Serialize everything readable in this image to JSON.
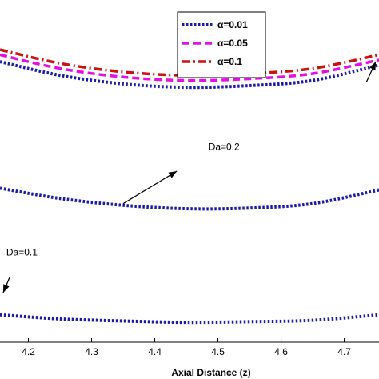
{
  "chart_data": {
    "type": "line",
    "xlabel": "Axial Distance (z)",
    "x_ticks": [
      "4.2",
      "4.3",
      "4.4",
      "4.5",
      "4.6",
      "4.7"
    ],
    "xlim": [
      4.155,
      4.755
    ],
    "ylim": [
      0.0,
      1.0
    ],
    "grid": false,
    "legend_position": "top-right",
    "series": [
      {
        "name": "α=0.01",
        "color": "#1a1aa8",
        "dash": "dot",
        "x": [
          4.155,
          4.25,
          4.35,
          4.45,
          4.55,
          4.65,
          4.755
        ],
        "y": [
          0.82,
          0.78,
          0.755,
          0.745,
          0.75,
          0.765,
          0.81
        ]
      },
      {
        "name": "α=0.05",
        "color": "#e60ee6",
        "dash": "dash",
        "x": [
          4.155,
          4.25,
          4.35,
          4.45,
          4.55,
          4.65,
          4.755
        ],
        "y": [
          0.84,
          0.8,
          0.775,
          0.765,
          0.77,
          0.785,
          0.825
        ]
      },
      {
        "name": "α=0.1",
        "color": "#cc1111",
        "dash": "dashdot",
        "x": [
          4.155,
          4.25,
          4.35,
          4.45,
          4.55,
          4.65,
          4.755
        ],
        "y": [
          0.855,
          0.815,
          0.79,
          0.78,
          0.785,
          0.8,
          0.84
        ]
      },
      {
        "name": "",
        "color": "#1a1aa8",
        "dash": "dot",
        "x": [
          4.155,
          4.25,
          4.35,
          4.45,
          4.55,
          4.65,
          4.755
        ],
        "y": [
          0.45,
          0.42,
          0.4,
          0.39,
          0.392,
          0.405,
          0.445
        ]
      },
      {
        "name": "",
        "color": "#1a1aa8",
        "dash": "dot",
        "x": [
          4.155,
          4.25,
          4.35,
          4.45,
          4.55,
          4.65,
          4.755
        ],
        "y": [
          0.08,
          0.068,
          0.062,
          0.058,
          0.06,
          0.064,
          0.08
        ]
      }
    ],
    "annotations": [
      {
        "text": "Da=0.2",
        "x": 4.485,
        "y": 0.562,
        "arrow_from": [
          4.35,
          0.405
        ],
        "arrow_to": [
          4.435,
          0.5
        ]
      },
      {
        "text": "Da=0.1",
        "x": 4.165,
        "y": 0.253
      },
      {
        "text": "",
        "arrow_from": [
          4.735,
          0.76
        ],
        "arrow_to": [
          4.75,
          0.82
        ]
      }
    ]
  }
}
